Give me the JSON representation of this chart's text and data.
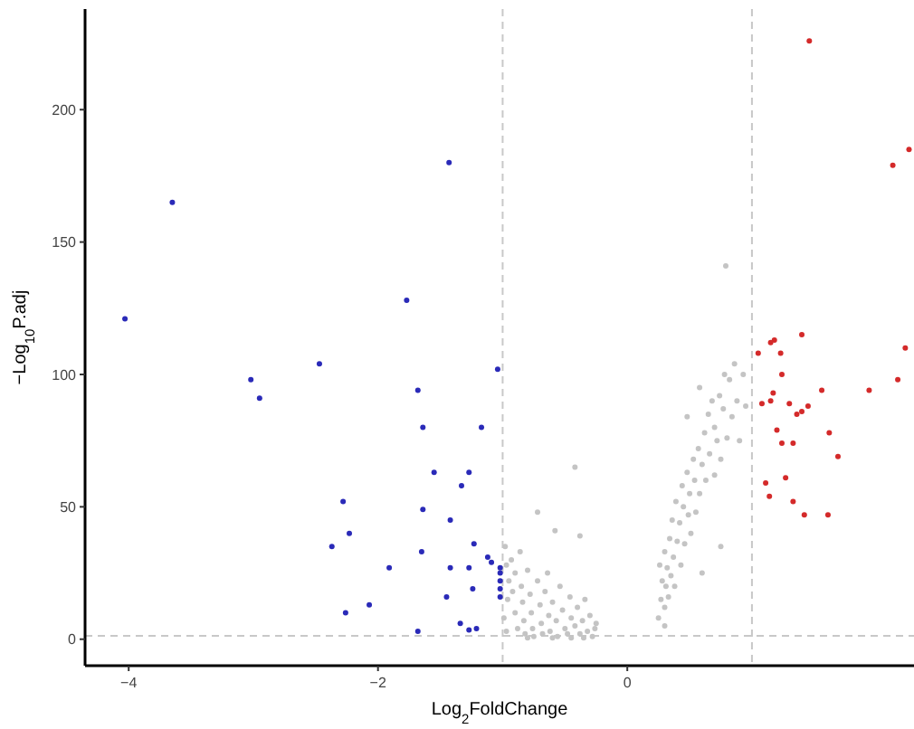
{
  "chart_data": {
    "type": "scatter",
    "xlabel": "Log$_{2}$FoldChange",
    "ylabel": "−Log$_{10}$P.adj",
    "xlim": [
      -4.35,
      2.3
    ],
    "ylim": [
      -10,
      238
    ],
    "xticks": [
      -4,
      -2,
      0
    ],
    "yticks": [
      0,
      50,
      100,
      150,
      200
    ],
    "grid": false,
    "marker": "circle",
    "ref_lines": [
      {
        "axis": "x",
        "value": -1,
        "color": "#c8c8c8",
        "line_style": "dashed"
      },
      {
        "axis": "x",
        "value": 1,
        "color": "#c8c8c8",
        "line_style": "dashed"
      },
      {
        "axis": "y",
        "value": 1.3,
        "color": "#c8c8c8",
        "line_style": "dashed"
      }
    ],
    "series": [
      {
        "color": "#c4c4c4",
        "x": [
          -0.98,
          -0.97,
          -0.95,
          -0.96,
          -0.99,
          -0.97,
          -0.93,
          -0.9,
          -0.92,
          -0.9,
          -0.88,
          -0.86,
          -0.85,
          -0.84,
          -0.83,
          -0.82,
          -0.8,
          -0.78,
          -0.77,
          -0.76,
          -0.75,
          -0.72,
          -0.72,
          -0.7,
          -0.69,
          -0.68,
          -0.66,
          -0.64,
          -0.63,
          -0.62,
          -0.6,
          -0.58,
          -0.57,
          -0.56,
          -0.54,
          -0.52,
          -0.5,
          -0.48,
          -0.46,
          -0.45,
          -0.42,
          -0.42,
          -0.4,
          -0.38,
          -0.38,
          -0.36,
          -0.34,
          -0.32,
          -0.3,
          -0.28,
          -0.26,
          -0.25,
          -0.6,
          -0.45,
          -0.35,
          -0.8,
          0.25,
          0.27,
          0.28,
          0.26,
          0.3,
          0.31,
          0.3,
          0.32,
          0.33,
          0.34,
          0.35,
          0.36,
          0.37,
          0.38,
          0.39,
          0.4,
          0.42,
          0.43,
          0.44,
          0.45,
          0.46,
          0.48,
          0.49,
          0.5,
          0.51,
          0.53,
          0.54,
          0.55,
          0.57,
          0.58,
          0.58,
          0.6,
          0.62,
          0.63,
          0.65,
          0.66,
          0.68,
          0.7,
          0.7,
          0.72,
          0.74,
          0.75,
          0.77,
          0.78,
          0.79,
          0.8,
          0.82,
          0.84,
          0.86,
          0.88,
          0.9,
          0.93,
          0.95,
          0.6,
          0.75,
          0.48,
          0.3
        ],
        "values": [
          35,
          28,
          22,
          15,
          8,
          3,
          30,
          25,
          18,
          10,
          4,
          33,
          20,
          14,
          7,
          2,
          26,
          17,
          10,
          4,
          1,
          48,
          22,
          13,
          6,
          2,
          18,
          25,
          9,
          3,
          14,
          41,
          7,
          1,
          20,
          11,
          4,
          2,
          16,
          8,
          65,
          5,
          12,
          39,
          2,
          7,
          15,
          3,
          9,
          1,
          4,
          6,
          0.5,
          0.5,
          0.5,
          0.5,
          8,
          15,
          22,
          28,
          12,
          20,
          33,
          27,
          16,
          38,
          24,
          45,
          31,
          20,
          52,
          37,
          44,
          28,
          58,
          50,
          36,
          63,
          47,
          55,
          40,
          68,
          60,
          48,
          72,
          95,
          55,
          66,
          78,
          60,
          85,
          70,
          90,
          62,
          80,
          75,
          92,
          68,
          87,
          100,
          141,
          76,
          98,
          84,
          104,
          90,
          75,
          100,
          88,
          25,
          35,
          84,
          5
        ]
      },
      {
        "color": "#2a2ab8",
        "x": [
          -4.03,
          -3.65,
          -3.02,
          -2.95,
          -2.47,
          -1.43,
          -1.77,
          -1.68,
          -1.64,
          -1.17,
          -1.04,
          -1.55,
          -1.33,
          -1.27,
          -2.28,
          -1.64,
          -1.42,
          -2.23,
          -2.37,
          -1.91,
          -1.65,
          -1.42,
          -1.27,
          -1.23,
          -1.12,
          -1.09,
          -1.02,
          -1.02,
          -1.02,
          -1.02,
          -1.02,
          -1.24,
          -2.07,
          -2.26,
          -1.45,
          -1.34,
          -1.68,
          -1.27,
          -1.21
        ],
        "values": [
          121,
          165,
          98,
          91,
          104,
          180,
          128,
          94,
          80,
          80,
          102,
          63,
          58,
          63,
          52,
          49,
          45,
          40,
          35,
          27,
          33,
          27,
          27,
          36,
          31,
          29,
          27,
          25,
          22,
          19,
          16,
          19,
          13,
          10,
          16,
          6,
          3,
          3.5,
          4
        ]
      },
      {
        "color": "#d42a2a",
        "x": [
          2.23,
          2.17,
          1.94,
          1.56,
          1.4,
          1.18,
          1.15,
          1.05,
          1.23,
          1.24,
          1.17,
          1.15,
          1.08,
          1.3,
          1.45,
          1.4,
          1.36,
          1.2,
          1.62,
          1.24,
          1.33,
          1.69,
          1.11,
          1.27,
          1.14,
          1.33,
          1.42,
          1.61,
          1.46,
          2.26,
          2.13
        ],
        "values": [
          110,
          98,
          94,
          94,
          115,
          113,
          112,
          108,
          108,
          100,
          93,
          90,
          89,
          89,
          88,
          86,
          85,
          79,
          78,
          74,
          74,
          69,
          59,
          61,
          54,
          52,
          47,
          47,
          226,
          185,
          179
        ]
      }
    ]
  }
}
